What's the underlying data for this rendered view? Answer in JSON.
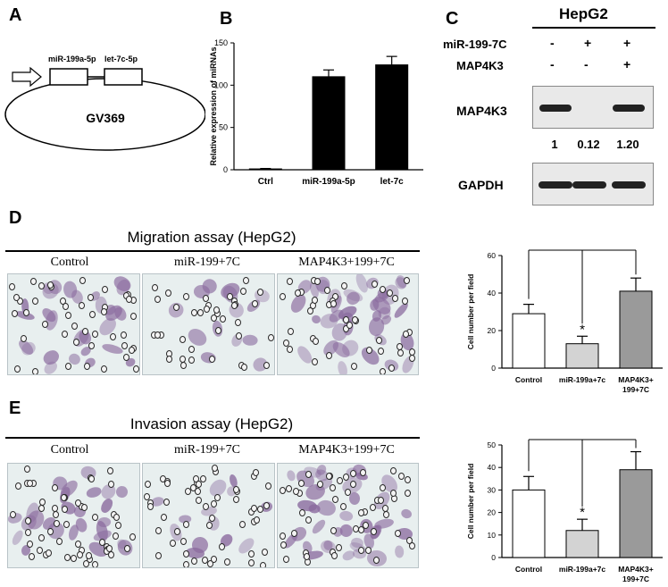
{
  "panels": {
    "a": {
      "letter": "A",
      "vector": "GV369",
      "insert1": "miR-199a-5p",
      "insert2": "let-7c-5p"
    },
    "b": {
      "letter": "B"
    },
    "c": {
      "letter": "C",
      "cell_line": "HepG2",
      "row1_label": "miR-199-7C",
      "row1_signs": [
        "-",
        "+",
        "+"
      ],
      "row2_label": "MAP4K3",
      "row2_signs": [
        "-",
        "-",
        "+"
      ],
      "blot1_label": "MAP4K3",
      "blot1_bands": [
        1,
        0,
        1
      ],
      "quant": [
        "1",
        "0.12",
        "1.20"
      ],
      "blot2_label": "GAPDH"
    },
    "d": {
      "letter": "D",
      "title": "Migration assay (HepG2)",
      "images": [
        "Control",
        "miR-199+7C",
        "MAP4K3+199+7C"
      ]
    },
    "e": {
      "letter": "E",
      "title": "Invasion assay (HepG2)",
      "images": [
        "Control",
        "miR-199+7C",
        "MAP4K3+199+7C"
      ]
    }
  },
  "colors": {
    "stain_purple": "#8a6a9e",
    "bar_black": "#000000",
    "bar_light": "#d3d3d3",
    "bar_dark": "#9a9a9a",
    "bar_white": "#ffffff"
  },
  "chart_data": [
    {
      "type": "bar",
      "panel": "B",
      "categories": [
        "Ctrl",
        "miR-199a-5p",
        "let-7c"
      ],
      "values": [
        1,
        110,
        124
      ],
      "errors": [
        0.5,
        8,
        10
      ],
      "ylabel": "Relative expression of miRNAs",
      "ylim": [
        0,
        150
      ],
      "yticks": [
        0,
        50,
        100,
        150
      ],
      "colors": [
        "#000000",
        "#000000",
        "#000000"
      ]
    },
    {
      "type": "bar",
      "panel": "D",
      "categories": [
        "Control",
        "miR-199a+7c",
        "MAP4K3+\n199+7C"
      ],
      "values": [
        29,
        13,
        41
      ],
      "errors": [
        5,
        4,
        7
      ],
      "ylabel": "Cell number per field",
      "ylim": [
        0,
        60
      ],
      "yticks": [
        0,
        20,
        40,
        60
      ],
      "significance": "*",
      "colors": [
        "#ffffff",
        "#d3d3d3",
        "#9a9a9a"
      ]
    },
    {
      "type": "bar",
      "panel": "E",
      "categories": [
        "Control",
        "miR-199a+7c",
        "MAP4K3+\n199+7C"
      ],
      "values": [
        30,
        12,
        39
      ],
      "errors": [
        6,
        5,
        8
      ],
      "ylabel": "Cell number per field",
      "ylim": [
        0,
        50
      ],
      "yticks": [
        0,
        10,
        20,
        30,
        40,
        50
      ],
      "significance": "*",
      "colors": [
        "#ffffff",
        "#d3d3d3",
        "#9a9a9a"
      ]
    }
  ]
}
